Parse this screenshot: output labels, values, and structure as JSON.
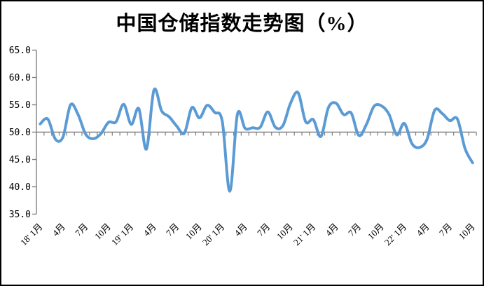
{
  "title": "中国仓储指数走势图（%）",
  "colors": {
    "line": "#5B9BD5",
    "axis": "#808080",
    "text": "#000000",
    "background": "#ffffff",
    "border": "#000000"
  },
  "chart_data": {
    "type": "line",
    "title": "中国仓储指数走势图（%）",
    "series_name": "中国仓储指数",
    "unit": "%",
    "ylim": [
      35.0,
      65.0
    ],
    "ytick_step": 5.0,
    "ytick_labels": [
      "65.0",
      "60.0",
      "55.0",
      "50.0",
      "45.0",
      "40.0",
      "35.0"
    ],
    "x_axis_cross_value": 50.0,
    "x_labels": [
      "18' 1月",
      "4月",
      "7月",
      "10月",
      "19' 1月",
      "4月",
      "7月",
      "10月",
      "20' 1月",
      "4月",
      "7月",
      "10月",
      "21' 1月",
      "4月",
      "7月",
      "10月",
      "22' 1月",
      "4月",
      "7月",
      "10月"
    ],
    "x_label_every_n_months": 3,
    "grid": false,
    "legend": "none",
    "values": [
      51.5,
      52.4,
      48.7,
      49.1,
      55.0,
      53.2,
      49.6,
      48.8,
      49.7,
      51.8,
      51.9,
      55.1,
      51.4,
      54.3,
      46.9,
      57.7,
      53.9,
      52.8,
      51.1,
      49.8,
      54.5,
      52.6,
      54.9,
      53.6,
      52.0,
      39.2,
      53.3,
      50.7,
      50.8,
      50.9,
      53.7,
      50.9,
      51.2,
      55.3,
      57.2,
      51.9,
      52.3,
      49.2,
      54.5,
      55.3,
      53.2,
      53.5,
      49.4,
      51.4,
      54.7,
      54.8,
      53.2,
      49.5,
      51.6,
      47.9,
      47.2,
      48.7,
      54.0,
      53.4,
      52.1,
      52.4,
      47.0,
      44.4
    ]
  }
}
